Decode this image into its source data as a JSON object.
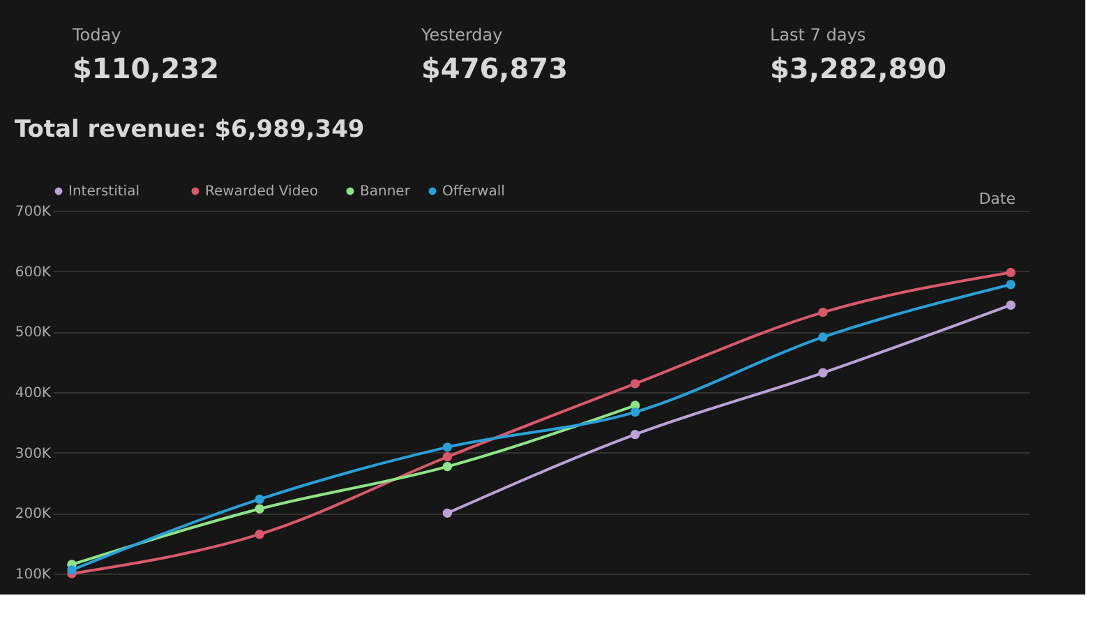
{
  "chart_data": [
    {
      "type": "other",
      "annotations": [
        "Today",
        "$110,232",
        "Yesterday",
        "$476,873",
        "Last 7 days",
        "$3,282,890"
      ]
    },
    {
      "type": "line",
      "title": "Total revenue: $6,989,349",
      "annotations": [
        "Date"
      ],
      "categories": [
        null,
        null,
        null,
        null,
        null,
        null
      ],
      "series": [
        {
          "name": "Interstitial",
          "color": "#b9a3d9",
          "values": [
            null,
            null,
            200000,
            330000,
            432000,
            544000
          ]
        },
        {
          "name": "Rewarded Video",
          "color": "#d9596a",
          "values": [
            100000,
            165000,
            293000,
            414000,
            532000,
            598000
          ]
        },
        {
          "name": "Banner",
          "color": "#8fe388",
          "values": [
            115000,
            207000,
            277000,
            378000,
            null,
            null
          ]
        },
        {
          "name": "Offerwall",
          "color": "#2a9fd8",
          "values": [
            106000,
            223000,
            309000,
            367000,
            491000,
            578000
          ]
        }
      ],
      "ylim": [
        100000,
        700000
      ],
      "yticks": [
        {
          "value": 100000,
          "label": "100K"
        },
        {
          "value": 200000,
          "label": "200K"
        },
        {
          "value": 300000,
          "label": "300K"
        },
        {
          "value": 400000,
          "label": "400K"
        },
        {
          "value": 500000,
          "label": "500K"
        },
        {
          "value": 600000,
          "label": "600K"
        },
        {
          "value": 700000,
          "label": "700K"
        }
      ],
      "grid": "y",
      "legend": "top left",
      "marker": "circle",
      "line_style": "solid",
      "tick_labels": "y"
    }
  ]
}
